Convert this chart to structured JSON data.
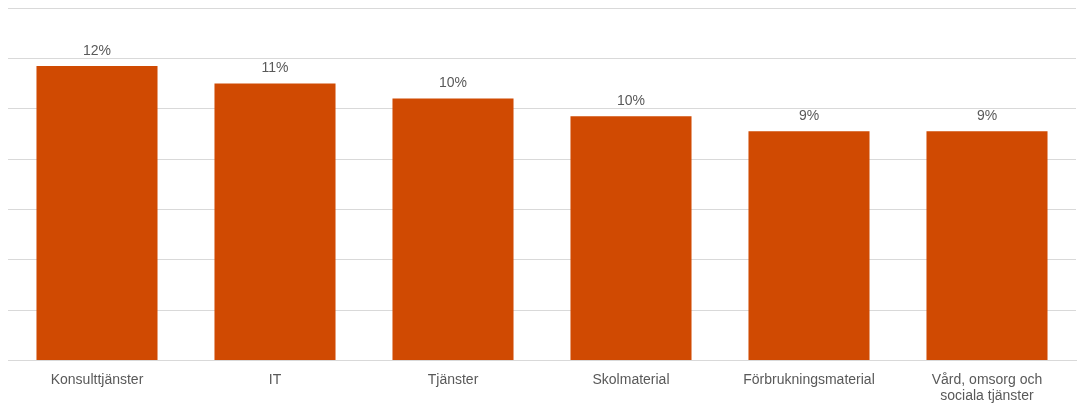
{
  "chart_data": {
    "type": "bar",
    "categories": [
      "Konsulttjänster",
      "IT",
      "Tjänster",
      "Skolmaterial",
      "Förbrukningsmaterial",
      "Vård, omsorg och sociala tjänster"
    ],
    "values": [
      11.7,
      11.0,
      10.4,
      9.7,
      9.1,
      9.1
    ],
    "value_labels": [
      "12%",
      "11%",
      "10%",
      "10%",
      "9%",
      "9%"
    ],
    "color": "#d04a02",
    "ylim": [
      0,
      14
    ],
    "yticks": [
      {
        "value": 0,
        "label": null
      },
      {
        "value": 2,
        "label": null
      },
      {
        "value": 4,
        "label": null
      },
      {
        "value": 6,
        "label": null
      },
      {
        "value": 8,
        "label": null
      },
      {
        "value": 10,
        "label": null
      },
      {
        "value": 12,
        "label": null
      },
      {
        "value": 14,
        "label": null
      }
    ],
    "grid": true,
    "tick_labels": "x"
  }
}
